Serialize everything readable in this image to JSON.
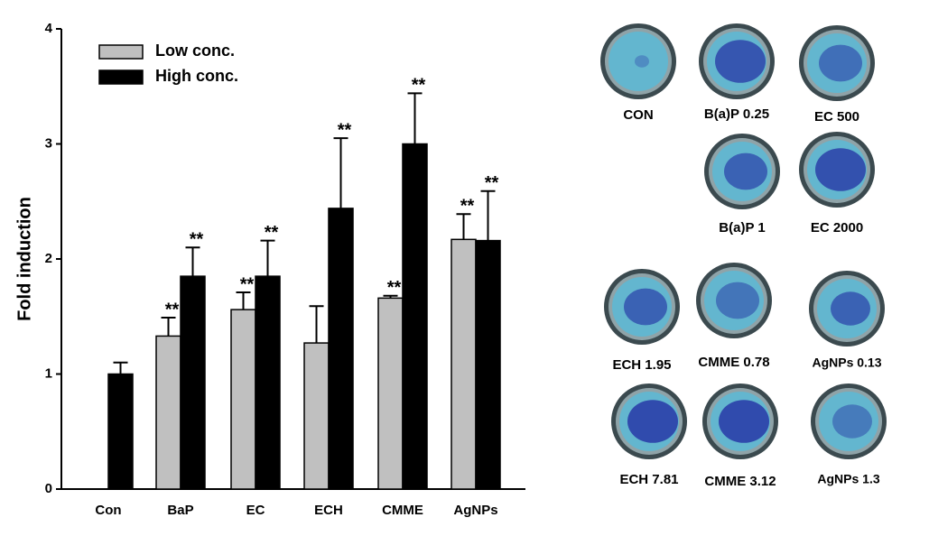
{
  "chart_data": {
    "type": "bar",
    "y_label": "Fold induction",
    "categories": [
      "Con",
      "BaP",
      "EC",
      "ECH",
      "CMME",
      "AgNPs"
    ],
    "series": [
      {
        "name": "Low conc.",
        "color": "#c0c0c0",
        "values": [
          null,
          1.33,
          1.56,
          1.27,
          1.66,
          2.17
        ],
        "errors": [
          null,
          0.16,
          0.15,
          0.32,
          0.02,
          0.22
        ],
        "annotations": [
          null,
          "**",
          "**",
          null,
          "**",
          "**"
        ]
      },
      {
        "name": "High conc.",
        "color": "#000000",
        "values": [
          1.0,
          1.85,
          1.85,
          2.44,
          3.0,
          2.16
        ],
        "errors": [
          0.1,
          0.25,
          0.31,
          0.61,
          0.44,
          0.43
        ],
        "annotations": [
          null,
          "**",
          "**",
          "**",
          "**",
          "**"
        ]
      }
    ],
    "ylim": [
      0,
      4
    ],
    "yticks": [
      0,
      1,
      2,
      3,
      4
    ],
    "grid": false,
    "legend": "top-left"
  },
  "plates": [
    {
      "label": "CON"
    },
    {
      "label": "B(a)P 0.25"
    },
    {
      "label": "EC 500"
    },
    {
      "label": "B(a)P 1"
    },
    {
      "label": "EC 2000"
    },
    {
      "label": "ECH 1.95"
    },
    {
      "label": "CMME 0.78"
    },
    {
      "label": "AgNPs 0.13"
    },
    {
      "label": "ECH 7.81"
    },
    {
      "label": "CMME 3.12"
    },
    {
      "label": "AgNPs 1.3"
    }
  ]
}
